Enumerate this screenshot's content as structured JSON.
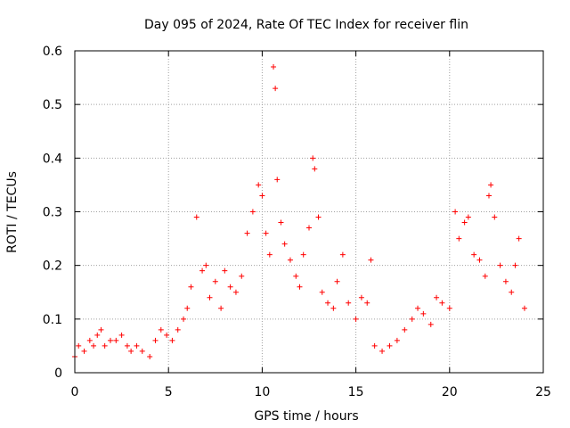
{
  "chart_data": {
    "type": "scatter",
    "title": "Day 095 of 2024, Rate Of TEC Index for receiver flin",
    "xlabel": "GPS time / hours",
    "ylabel": "ROTI / TECUs",
    "xlim": [
      0,
      25
    ],
    "ylim": [
      0,
      0.6
    ],
    "x_ticks": [
      "0",
      "5",
      "10",
      "15",
      "20",
      "25"
    ],
    "y_ticks": [
      "0",
      "0.1",
      "0.2",
      "0.3",
      "0.4",
      "0.5",
      "0.6"
    ],
    "grid": true,
    "marker": "+",
    "color": "#ff0000",
    "series": [
      {
        "x": [
          0.0,
          0.2,
          0.5,
          0.8,
          1.0,
          1.2,
          1.4,
          1.6,
          1.9,
          2.2,
          2.5,
          2.8,
          3.0,
          3.3,
          3.6,
          4.0,
          4.3,
          4.6,
          4.9,
          5.2,
          5.5,
          5.8,
          6.0,
          6.2,
          6.5,
          6.8,
          7.0,
          7.2,
          7.5,
          7.8,
          8.0,
          8.3,
          8.6,
          8.9,
          9.2,
          9.5,
          9.8,
          10.0,
          10.2,
          10.4,
          10.6,
          10.7,
          10.8,
          11.0,
          11.2,
          11.5,
          11.8,
          12.0,
          12.2,
          12.5,
          12.7,
          12.8,
          13.0,
          13.2,
          13.5,
          13.8,
          14.0,
          14.3,
          14.6,
          15.0,
          15.3,
          15.6,
          15.8,
          16.0,
          16.4,
          16.8,
          17.2,
          17.6,
          18.0,
          18.3,
          18.6,
          19.0,
          19.3,
          19.6,
          20.0,
          20.3,
          20.5,
          20.8,
          21.0,
          21.3,
          21.6,
          21.9,
          22.1,
          22.2,
          22.4,
          22.7,
          23.0,
          23.3,
          23.5,
          23.7,
          24.0
        ],
        "y": [
          0.03,
          0.05,
          0.04,
          0.06,
          0.05,
          0.07,
          0.08,
          0.05,
          0.06,
          0.06,
          0.07,
          0.05,
          0.04,
          0.05,
          0.04,
          0.03,
          0.06,
          0.08,
          0.07,
          0.06,
          0.08,
          0.1,
          0.12,
          0.16,
          0.29,
          0.19,
          0.2,
          0.14,
          0.17,
          0.12,
          0.19,
          0.16,
          0.15,
          0.18,
          0.26,
          0.3,
          0.35,
          0.33,
          0.26,
          0.22,
          0.57,
          0.53,
          0.36,
          0.28,
          0.24,
          0.21,
          0.18,
          0.16,
          0.22,
          0.27,
          0.4,
          0.38,
          0.29,
          0.15,
          0.13,
          0.12,
          0.17,
          0.22,
          0.13,
          0.1,
          0.14,
          0.13,
          0.21,
          0.05,
          0.04,
          0.05,
          0.06,
          0.08,
          0.1,
          0.12,
          0.11,
          0.09,
          0.14,
          0.13,
          0.12,
          0.3,
          0.25,
          0.28,
          0.29,
          0.22,
          0.21,
          0.18,
          0.33,
          0.35,
          0.29,
          0.2,
          0.17,
          0.15,
          0.2,
          0.25,
          0.12
        ]
      }
    ]
  }
}
